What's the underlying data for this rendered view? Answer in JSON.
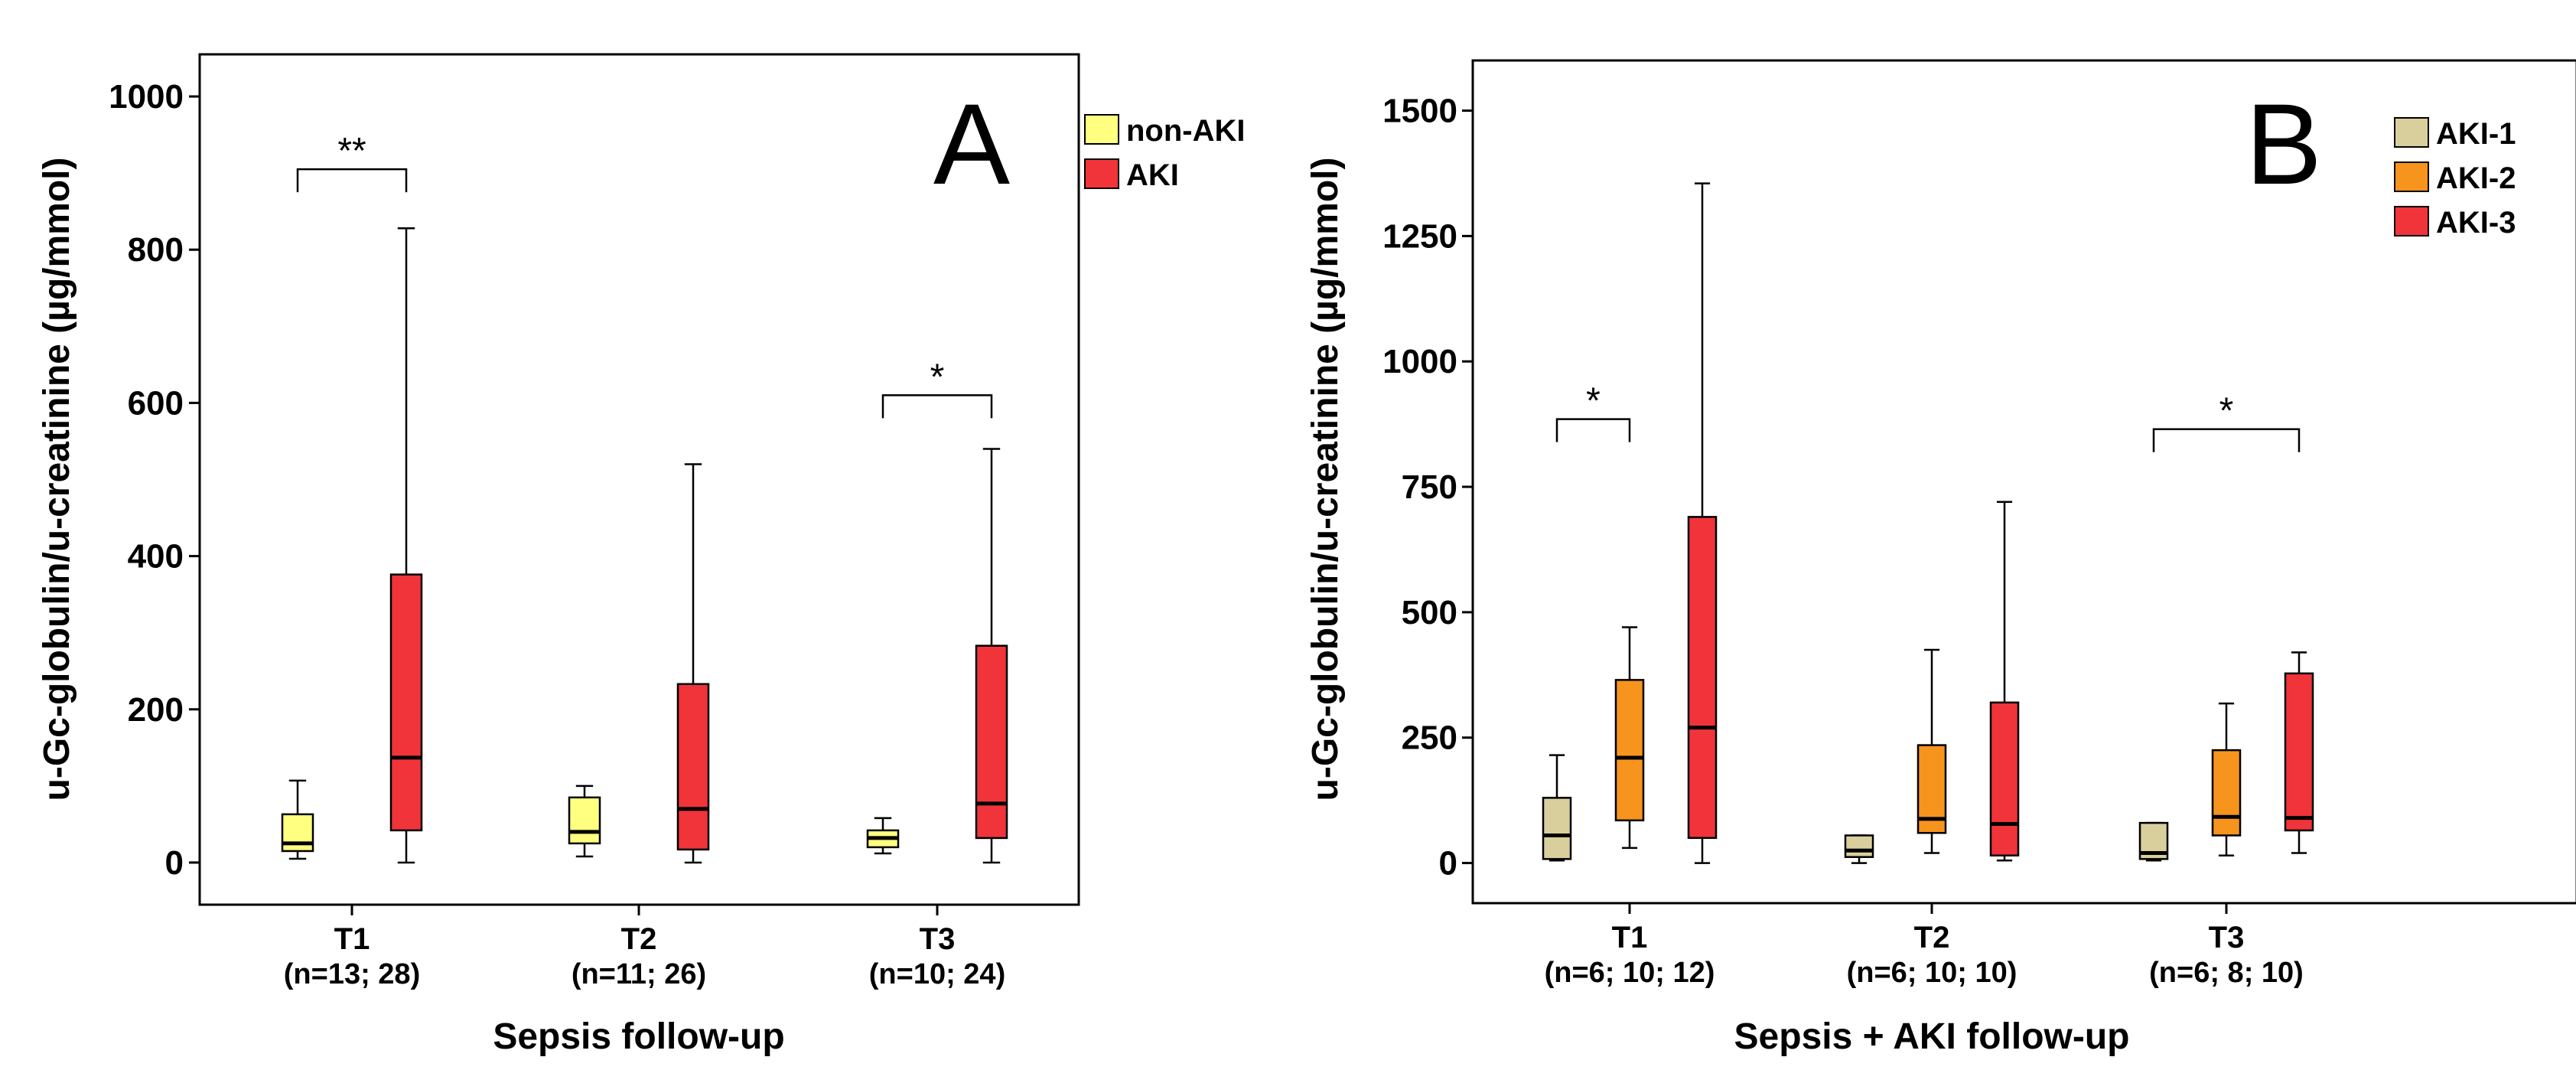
{
  "chart_data": [
    {
      "type": "box",
      "panel_letter": "A",
      "title": "",
      "xlabel": "Sepsis follow-up",
      "ylabel": "u-Gc-globulin/u-creatinine (µg/mmol)",
      "ylim": [
        -55,
        1055
      ],
      "yticks": [
        "0",
        "200",
        "400",
        "600",
        "800",
        "1000"
      ],
      "ytick_values": [
        0,
        200,
        400,
        600,
        800,
        1000
      ],
      "categories": [
        {
          "label": "T1",
          "sub": "(n=13; 28)"
        },
        {
          "label": "T2",
          "sub": "(n=11; 26)"
        },
        {
          "label": "T3",
          "sub": "(n=10; 24)"
        }
      ],
      "series": [
        {
          "name": "non-AKI",
          "color": "#ffff80",
          "boxes": [
            {
              "min": 5,
              "q1": 15,
              "median": 25,
              "q3": 63,
              "max": 107
            },
            {
              "min": 8,
              "q1": 25,
              "median": 40,
              "q3": 85,
              "max": 100
            },
            {
              "min": 12,
              "q1": 20,
              "median": 32,
              "q3": 42,
              "max": 58
            }
          ]
        },
        {
          "name": "AKI",
          "color": "#f0343a",
          "boxes": [
            {
              "min": 0,
              "q1": 42,
              "median": 137,
              "q3": 376,
              "max": 828
            },
            {
              "min": 0,
              "q1": 17,
              "median": 70,
              "q3": 233,
              "max": 520
            },
            {
              "min": 0,
              "q1": 32,
              "median": 77,
              "q3": 283,
              "max": 540
            }
          ]
        }
      ],
      "significance": [
        {
          "category": 0,
          "from_series": 0,
          "to_series": 1,
          "label": "**",
          "y": 905
        },
        {
          "category": 2,
          "from_series": 0,
          "to_series": 1,
          "label": "*",
          "y": 610
        }
      ],
      "legend_position": "top-right, outside plot"
    },
    {
      "type": "box",
      "panel_letter": "B",
      "title": "",
      "xlabel": "Sepsis + AKI follow-up",
      "ylabel": "u-Gc-globulin/u-creatinine (µg/mmol)",
      "ylim": [
        -80,
        1600
      ],
      "yticks": [
        "0",
        "250",
        "500",
        "750",
        "1000",
        "1250",
        "1500"
      ],
      "ytick_values": [
        0,
        250,
        500,
        750,
        1000,
        1250,
        1500
      ],
      "categories": [
        {
          "label": "T1",
          "sub": "(n=6; 10; 12)"
        },
        {
          "label": "T2",
          "sub": "(n=6; 10; 10)"
        },
        {
          "label": "T3",
          "sub": "(n=6; 8; 10)"
        }
      ],
      "series": [
        {
          "name": "AKI-1",
          "color": "#d9cf9c",
          "boxes": [
            {
              "min": 5,
              "q1": 8,
              "median": 55,
              "q3": 130,
              "max": 215
            },
            {
              "min": 0,
              "q1": 12,
              "median": 25,
              "q3": 55,
              "max": 55
            },
            {
              "min": 5,
              "q1": 8,
              "median": 20,
              "q3": 80,
              "max": 80
            }
          ]
        },
        {
          "name": "AKI-2",
          "color": "#f7941d",
          "boxes": [
            {
              "min": 30,
              "q1": 85,
              "median": 210,
              "q3": 365,
              "max": 470
            },
            {
              "min": 20,
              "q1": 60,
              "median": 88,
              "q3": 235,
              "max": 425
            },
            {
              "min": 15,
              "q1": 55,
              "median": 92,
              "q3": 225,
              "max": 318
            }
          ]
        },
        {
          "name": "AKI-3",
          "color": "#f0343a",
          "boxes": [
            {
              "min": 0,
              "q1": 50,
              "median": 270,
              "q3": 690,
              "max": 1355
            },
            {
              "min": 5,
              "q1": 15,
              "median": 78,
              "q3": 320,
              "max": 720
            },
            {
              "min": 20,
              "q1": 65,
              "median": 90,
              "q3": 378,
              "max": 420
            }
          ]
        }
      ],
      "significance": [
        {
          "category": 0,
          "from_series": 0,
          "to_series": 1,
          "label": "*",
          "y": 885
        },
        {
          "category": 2,
          "from_series": 0,
          "to_series": 2,
          "label": "*",
          "y": 865
        }
      ],
      "legend_position": "top-right, outside plot"
    }
  ]
}
